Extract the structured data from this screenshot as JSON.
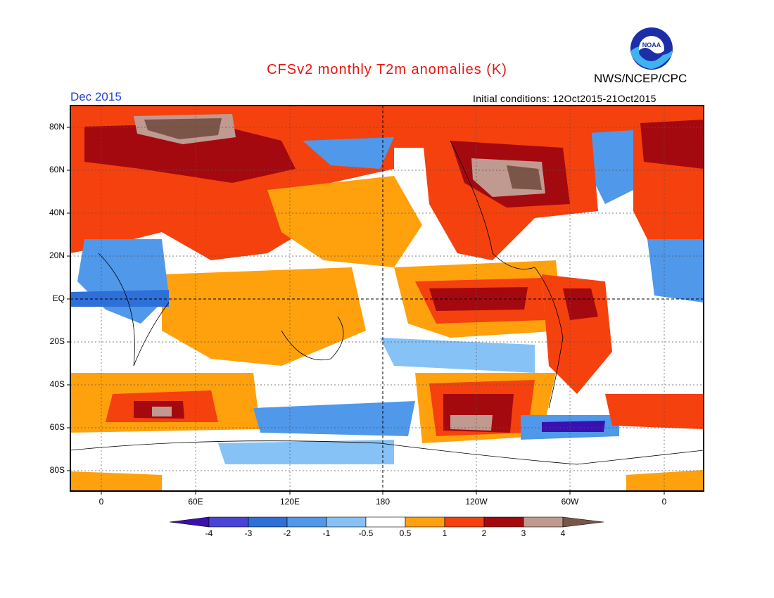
{
  "header": {
    "title": "CFSv2 monthly T2m anomalies (K)",
    "agency": "NWS/NCEP/CPC",
    "logo_text": "NOAA",
    "valid_month": "Dec 2015",
    "initial_conditions": "Initial conditions: 12Oct2015-21Oct2015"
  },
  "map": {
    "lat_ticks": [
      "80N",
      "60N",
      "40N",
      "20N",
      "EQ",
      "20S",
      "40S",
      "60S",
      "80S"
    ],
    "lon_ticks": [
      "0",
      "60E",
      "120E",
      "180",
      "120W",
      "60W",
      "0"
    ],
    "projection": "cylindrical equidistant, centered 180"
  },
  "colorbar": {
    "labels": [
      "-4",
      "-3",
      "-2",
      "-1",
      "-0.5",
      "0.5",
      "1",
      "2",
      "3",
      "4"
    ],
    "colors": [
      "#3a10b0",
      "#4a44d6",
      "#2f6fd8",
      "#4f98ea",
      "#86c2f6",
      "#ffffff",
      "#ffa10c",
      "#f4410e",
      "#a4090f",
      "#c09a90",
      "#7a5548"
    ]
  },
  "legend_colors": {
    "strong_warm": "#a4090f",
    "warm": "#f4410e",
    "mild_warm": "#ffa10c",
    "neutral": "#ffffff",
    "mild_cool": "#86c2f6",
    "cool": "#4f98ea",
    "strong_cool": "#2f6fd8",
    "extreme_warm": "#c09a90",
    "max_warm": "#7a5548"
  }
}
